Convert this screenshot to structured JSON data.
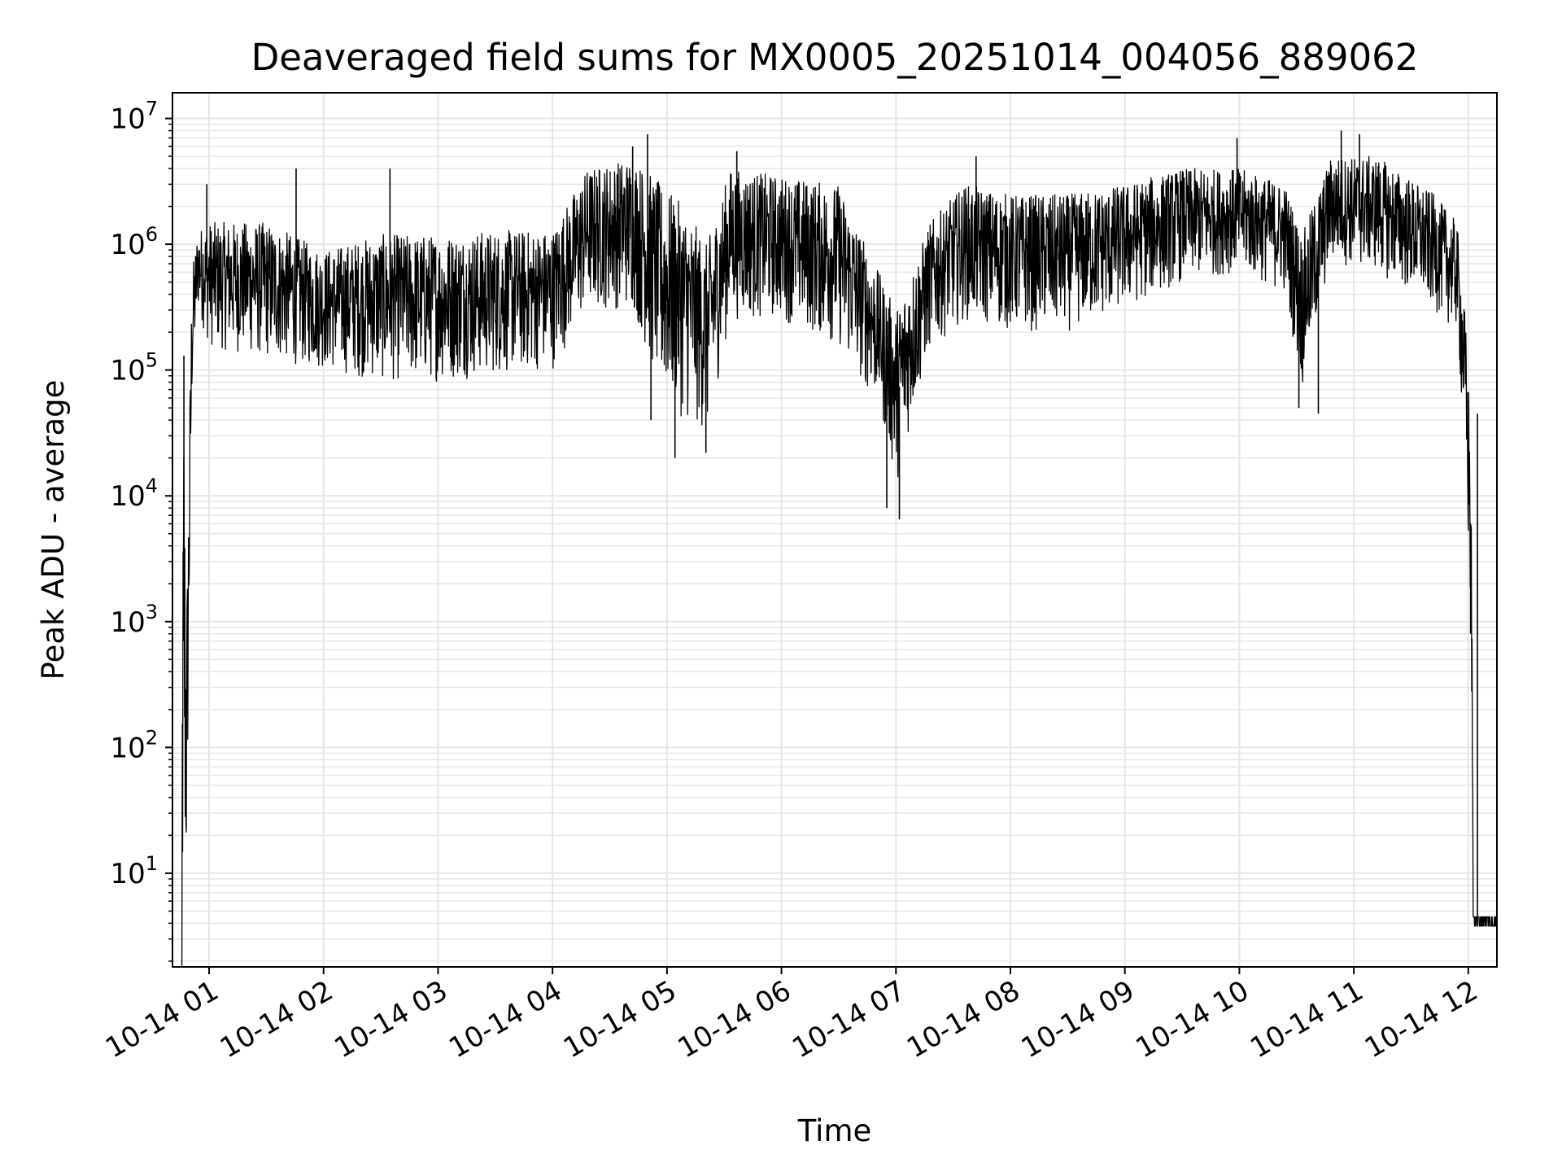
{
  "chart_data": {
    "type": "line",
    "title": "Deaveraged field sums for MX0005_20251014_004056_889062",
    "xlabel": "Time",
    "ylabel": "Peak ADU - average",
    "yscale": "log",
    "ylim": [
      1.8,
      16000000
    ],
    "xlim_hours": [
      0.68,
      12.25
    ],
    "grid": true,
    "line_color": "#000000",
    "grid_color": "#e6e6e6",
    "x_ticks": [
      {
        "hour": 1,
        "label": "10-14 01"
      },
      {
        "hour": 2,
        "label": "10-14 02"
      },
      {
        "hour": 3,
        "label": "10-14 03"
      },
      {
        "hour": 4,
        "label": "10-14 04"
      },
      {
        "hour": 5,
        "label": "10-14 05"
      },
      {
        "hour": 6,
        "label": "10-14 06"
      },
      {
        "hour": 7,
        "label": "10-14 07"
      },
      {
        "hour": 8,
        "label": "10-14 08"
      },
      {
        "hour": 9,
        "label": "10-14 09"
      },
      {
        "hour": 10,
        "label": "10-14 10"
      },
      {
        "hour": 11,
        "label": "10-14 11"
      },
      {
        "hour": 12,
        "label": "10-14 12"
      }
    ],
    "y_ticks": [
      {
        "value": 10,
        "base": "10",
        "exp": "1"
      },
      {
        "value": 100,
        "base": "10",
        "exp": "2"
      },
      {
        "value": 1000,
        "base": "10",
        "exp": "3"
      },
      {
        "value": 10000,
        "base": "10",
        "exp": "4"
      },
      {
        "value": 100000,
        "base": "10",
        "exp": "5"
      },
      {
        "value": 1000000,
        "base": "10",
        "exp": "6"
      },
      {
        "value": 10000000,
        "base": "10",
        "exp": "7"
      }
    ],
    "series": [
      {
        "name": "Peak ADU - average",
        "envelope": [
          {
            "hour": 0.75,
            "low": 1.8,
            "high": 1.8
          },
          {
            "hour": 0.78,
            "low": 3.8,
            "high": 130000
          },
          {
            "hour": 0.8,
            "low": 3.8,
            "high": 800
          },
          {
            "hour": 0.85,
            "low": 50000,
            "high": 600000
          },
          {
            "hour": 0.9,
            "low": 300000,
            "high": 1300000
          },
          {
            "hour": 1.0,
            "low": 150000,
            "high": 1500000
          },
          {
            "hour": 1.5,
            "low": 120000,
            "high": 1500000
          },
          {
            "hour": 2.0,
            "low": 100000,
            "high": 900000
          },
          {
            "hour": 2.5,
            "low": 80000,
            "high": 1200000
          },
          {
            "hour": 3.0,
            "low": 80000,
            "high": 1200000
          },
          {
            "hour": 3.5,
            "low": 90000,
            "high": 1300000
          },
          {
            "hour": 4.0,
            "low": 100000,
            "high": 1300000
          },
          {
            "hour": 4.3,
            "low": 300000,
            "high": 4000000
          },
          {
            "hour": 4.7,
            "low": 300000,
            "high": 5000000
          },
          {
            "hour": 4.95,
            "low": 60000,
            "high": 3000000
          },
          {
            "hour": 5.15,
            "low": 40000,
            "high": 2000000
          },
          {
            "hour": 5.35,
            "low": 30000,
            "high": 1000000
          },
          {
            "hour": 5.55,
            "low": 250000,
            "high": 4000000
          },
          {
            "hour": 6.0,
            "low": 250000,
            "high": 3500000
          },
          {
            "hour": 6.5,
            "low": 150000,
            "high": 3000000
          },
          {
            "hour": 6.85,
            "low": 50000,
            "high": 600000
          },
          {
            "hour": 7.0,
            "low": 12000,
            "high": 300000
          },
          {
            "hour": 7.3,
            "low": 150000,
            "high": 1500000
          },
          {
            "hour": 7.6,
            "low": 250000,
            "high": 3000000
          },
          {
            "hour": 8.0,
            "low": 200000,
            "high": 2500000
          },
          {
            "hour": 8.5,
            "low": 200000,
            "high": 2500000
          },
          {
            "hour": 9.0,
            "low": 300000,
            "high": 3000000
          },
          {
            "hour": 9.5,
            "low": 500000,
            "high": 4000000
          },
          {
            "hour": 10.0,
            "low": 600000,
            "high": 4000000
          },
          {
            "hour": 10.4,
            "low": 400000,
            "high": 3000000
          },
          {
            "hour": 10.55,
            "low": 70000,
            "high": 1200000
          },
          {
            "hour": 10.8,
            "low": 700000,
            "high": 5000000
          },
          {
            "hour": 11.2,
            "low": 600000,
            "high": 5000000
          },
          {
            "hour": 11.7,
            "low": 300000,
            "high": 2500000
          },
          {
            "hour": 11.9,
            "low": 200000,
            "high": 1500000
          },
          {
            "hour": 11.97,
            "low": 20000,
            "high": 300000
          },
          {
            "hour": 12.02,
            "low": 800,
            "high": 45000
          },
          {
            "hour": 12.05,
            "low": 3.8,
            "high": 4.5
          },
          {
            "hour": 12.25,
            "low": 3.8,
            "high": 4.5
          }
        ],
        "spikes": [
          {
            "hour": 0.78,
            "value": 130000
          },
          {
            "hour": 0.98,
            "value": 3000000
          },
          {
            "hour": 1.76,
            "value": 4000000
          },
          {
            "hour": 2.58,
            "value": 4000000
          },
          {
            "hour": 4.83,
            "value": 7500000
          },
          {
            "hour": 4.7,
            "value": 6000000
          },
          {
            "hour": 5.61,
            "value": 5500000
          },
          {
            "hour": 7.7,
            "value": 5000000
          },
          {
            "hour": 9.98,
            "value": 7000000
          },
          {
            "hour": 10.89,
            "value": 8000000
          },
          {
            "hour": 11.05,
            "value": 7500000
          },
          {
            "hour": 5.07,
            "value": 20000
          },
          {
            "hour": 5.34,
            "value": 22000
          },
          {
            "hour": 7.03,
            "value": 6500
          },
          {
            "hour": 6.92,
            "value": 8000
          },
          {
            "hour": 10.52,
            "value": 50000
          },
          {
            "hour": 10.69,
            "value": 45000
          },
          {
            "hour": 4.86,
            "value": 40000
          },
          {
            "hour": 12.08,
            "value": 45000
          },
          {
            "hour": 12.02,
            "value": 800
          }
        ]
      }
    ]
  }
}
